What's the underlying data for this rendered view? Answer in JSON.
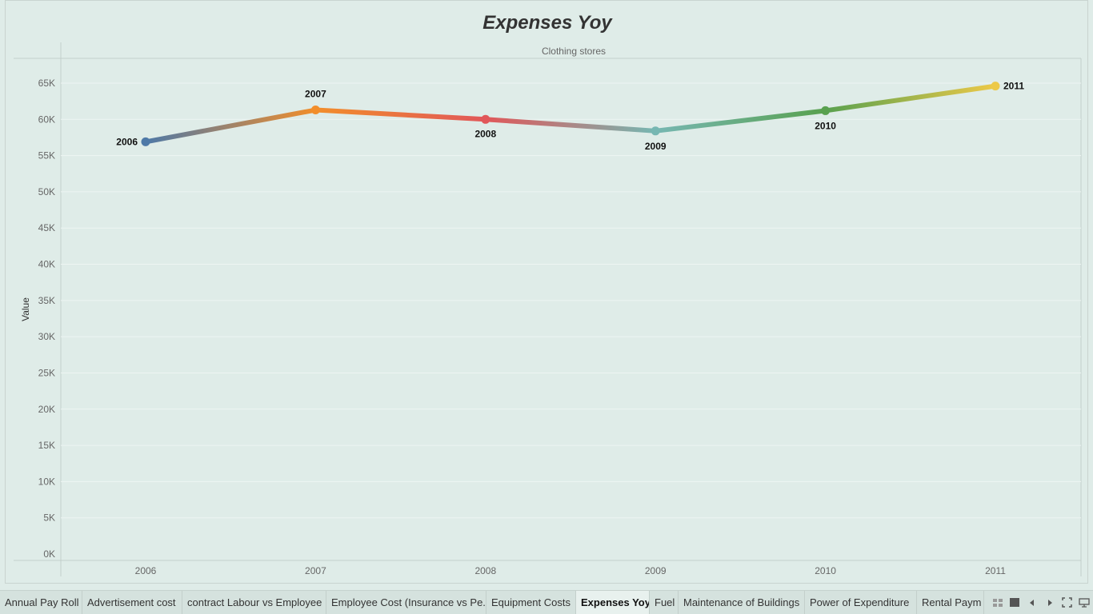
{
  "title": "Expenses Yoy",
  "chart_data": {
    "type": "line",
    "panel_header": "Clothing stores",
    "ylabel": "Value",
    "xlabel": "",
    "categories": [
      "2006",
      "2007",
      "2008",
      "2009",
      "2010",
      "2011"
    ],
    "values": [
      56900,
      61300,
      60000,
      58400,
      61200,
      64600
    ],
    "point_labels": [
      "2006",
      "2007",
      "2008",
      "2009",
      "2010",
      "2011"
    ],
    "point_colors": [
      "#4e79a7",
      "#f28e2b",
      "#e15759",
      "#76b7b2",
      "#59a14f",
      "#edc948"
    ],
    "ylim": [
      0,
      67000
    ],
    "yticks": [
      0,
      5000,
      10000,
      15000,
      20000,
      25000,
      30000,
      35000,
      40000,
      45000,
      50000,
      55000,
      60000,
      65000
    ],
    "ytick_labels": [
      "0K",
      "5K",
      "10K",
      "15K",
      "20K",
      "25K",
      "30K",
      "35K",
      "40K",
      "45K",
      "50K",
      "55K",
      "60K",
      "65K"
    ],
    "grid": true,
    "legend": "none"
  },
  "tabs": [
    {
      "label": "Annual Pay Roll",
      "active": false
    },
    {
      "label": "Advertisement cost",
      "active": false
    },
    {
      "label": "contract Labour vs Employee",
      "active": false
    },
    {
      "label": "Employee Cost (Insurance vs Pe...",
      "active": false
    },
    {
      "label": "Equipment Costs",
      "active": false
    },
    {
      "label": "Expenses Yoy",
      "active": true
    },
    {
      "label": "Fuel",
      "active": false
    },
    {
      "label": "Maintenance of Buildings",
      "active": false
    },
    {
      "label": "Power  of Expenditure",
      "active": false
    },
    {
      "label": "Rental Paym",
      "active": false
    }
  ],
  "controls": [
    "grid-view-icon",
    "sheet-view-icon",
    "prev-tab-icon",
    "next-tab-icon",
    "fullscreen-icon",
    "presentation-icon"
  ]
}
